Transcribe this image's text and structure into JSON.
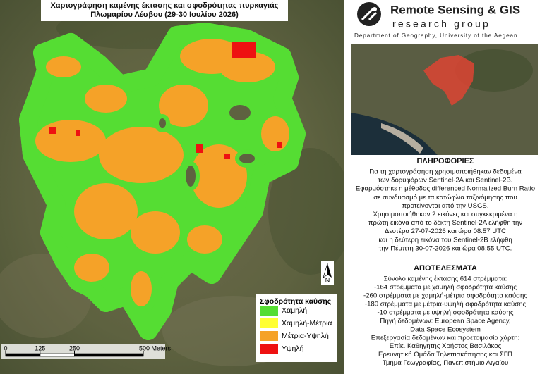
{
  "header": {
    "title_lines": [
      "Χαρτογράφηση καμένης έκτασης και σφοδρότητας πυρκαγιάς",
      "Πλωμαρίου Λέσβου (29-30 Ιουλίου 2026)"
    ]
  },
  "legend": {
    "title": "Σφοδρότητα καύσης",
    "items": [
      {
        "label": "Χαμηλή",
        "color": "#55dd33"
      },
      {
        "label": "Χαμηλή-Μέτρια",
        "color": "#ffff33"
      },
      {
        "label": "Μέτρια-Υψηλή",
        "color": "#f5a228"
      },
      {
        "label": "Υψηλή",
        "color": "#ee1111"
      }
    ]
  },
  "scale_bar": {
    "ticks": [
      0,
      125,
      250,
      {
        "value": 500,
        "label": "500 Meters"
      }
    ]
  },
  "north_arrow": {
    "label": "N"
  },
  "logo": {
    "name": "Remote Sensing & GIS",
    "subtitle": "research group",
    "department": "Department of Geography, University of the Aegean"
  },
  "info": {
    "heading": "ΠΛΗΡΟΦΟΡΙΕΣ",
    "lines": [
      "Για τη χαρτογράφηση χρησιμοποιήθηκαν δεδομένα",
      "των δορυφόρων Sentinel-2A και Sentinel-2B.",
      "Εφαρμόστηκε η μέθοδος differenced Normalized Burn Ratio",
      "σε συνδυασμό με τα κατώφλια ταξινόμησης που",
      "προτείνονται από την USGS.",
      "Χρησιμοποιήθηκαν 2 εικόνες και συγκεκριμένα η",
      "πρώτη εικόνα από το δέκτη Sentinel-2A ελήφθη την",
      "Δευτέρα 27-07-2026 και ώρα 08:57 UTC",
      "και η δεύτερη εικόνα του Sentinel-2B ελήφθη",
      "την Πέμπτη 30-07-2026 και ώρα 08:55 UTC."
    ]
  },
  "results": {
    "heading": "ΑΠΟΤΕΛΕΣΜΑΤΑ",
    "lines": [
      "Σύνολο καμένης έκτασης 614 στρέμματα:",
      "-164 στρέμματα με χαμηλή σφοδρότητα καύσης",
      "-260 στρέμματα με χαμηλή-μέτρια σφοδρότητα καύσης",
      "-180 στρέμματα με μέτρια-υψηλή σφοδρότητα καύσης",
      "-10 στρέμματα με υψηλή σφοδρότητα καύσης"
    ]
  },
  "source": {
    "lines": [
      "Πηγή δεδομένων: European Space Agency,",
      "Data Space Ecosystem",
      "Επεξεργασία δεδομένων και προετοιμασία χάρτη:",
      "Επίκ. Καθηγητής Χρήστος Βασιλάκος",
      "Ερευνητική Ομάδα Τηλεπισκόπησης και ΣΓΠ",
      "Τμήμα Γεωγραφίας, Πανεπιστήμιο Αιγαίου"
    ]
  }
}
